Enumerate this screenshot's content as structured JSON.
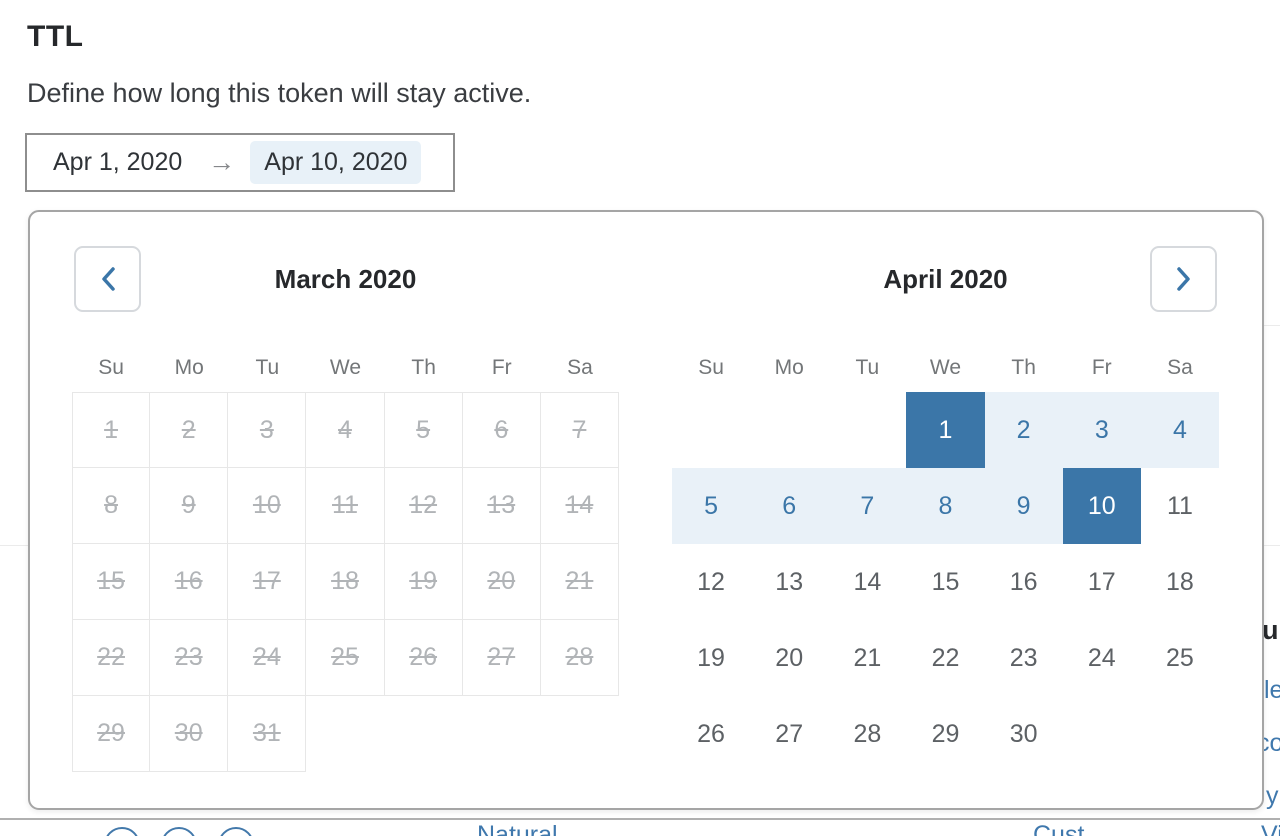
{
  "page": {
    "title": "TTL",
    "description": "Define how long this token will stay active."
  },
  "date_input": {
    "start_value": "Apr 1, 2020",
    "arrow": "→",
    "end_value": "Apr 10, 2020"
  },
  "calendar": {
    "prev_icon": "chevron-left",
    "next_icon": "chevron-right",
    "day_headers": [
      "Su",
      "Mo",
      "Tu",
      "We",
      "Th",
      "Fr",
      "Sa"
    ],
    "months": [
      {
        "title": "March 2020",
        "disabled": true,
        "weeks": [
          [
            1,
            2,
            3,
            4,
            5,
            6,
            7
          ],
          [
            8,
            9,
            10,
            11,
            12,
            13,
            14
          ],
          [
            15,
            16,
            17,
            18,
            19,
            20,
            21
          ],
          [
            22,
            23,
            24,
            25,
            26,
            27,
            28
          ],
          [
            29,
            30,
            31,
            null,
            null,
            null,
            null
          ]
        ]
      },
      {
        "title": "April 2020",
        "disabled": false,
        "selected_start": 1,
        "selected_end": 10,
        "weeks": [
          [
            null,
            null,
            null,
            1,
            2,
            3,
            4
          ],
          [
            5,
            6,
            7,
            8,
            9,
            10,
            11
          ],
          [
            12,
            13,
            14,
            15,
            16,
            17,
            18
          ],
          [
            19,
            20,
            21,
            22,
            23,
            24,
            25
          ],
          [
            26,
            27,
            28,
            29,
            30,
            null,
            null
          ]
        ]
      }
    ]
  },
  "colors": {
    "accent": "#3b76a8",
    "range_bg": "#e9f1f8",
    "selected_text": "#ffffff",
    "disabled_text": "#b1b4b7"
  },
  "fragments": {
    "right": [
      {
        "text": "u"
      },
      {
        "text": "le"
      },
      {
        "text": "co"
      },
      {
        "text": "y"
      }
    ],
    "bottom": [
      {
        "text": "Natural"
      },
      {
        "text": "Cust"
      },
      {
        "text": "Vi"
      }
    ]
  }
}
